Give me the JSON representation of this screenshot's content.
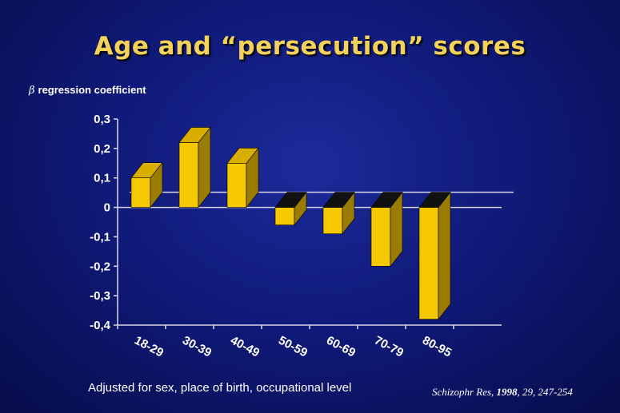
{
  "chart_data": {
    "type": "bar",
    "title": "Age and “persecution” scores",
    "ylabel_symbol": "β",
    "ylabel": "regression coefficient",
    "xlabel": "",
    "categories": [
      "18-29",
      "30-39",
      "40-49",
      "50-59",
      "60-69",
      "70-79",
      "80-95"
    ],
    "values": [
      0.1,
      0.22,
      0.15,
      -0.06,
      -0.09,
      -0.2,
      -0.38
    ],
    "ylim": [
      -0.4,
      0.3
    ],
    "yticks": [
      "0,3",
      "0,2",
      "0,1",
      "0",
      "-0,1",
      "-0,2",
      "-0,3",
      "-0,4"
    ],
    "ytick_values": [
      0.3,
      0.2,
      0.1,
      0,
      -0.1,
      -0.2,
      -0.3,
      -0.4
    ],
    "grid": false,
    "bar_style": "3d",
    "colors": {
      "bar_front": "#f6c800",
      "bar_side": "#9a7c00",
      "bar_top": "#d8ae00",
      "bar_top_dark": "#111111",
      "axis": "#d8d8e8"
    }
  },
  "footnote": "Adjusted for sex, place of birth, occupational level",
  "citation": {
    "journal": "Schizophr Res,",
    "year": "1998",
    "rest": ", 29, 247-254"
  },
  "colors": {
    "title": "#f4d25a",
    "background": "#101a7a"
  }
}
